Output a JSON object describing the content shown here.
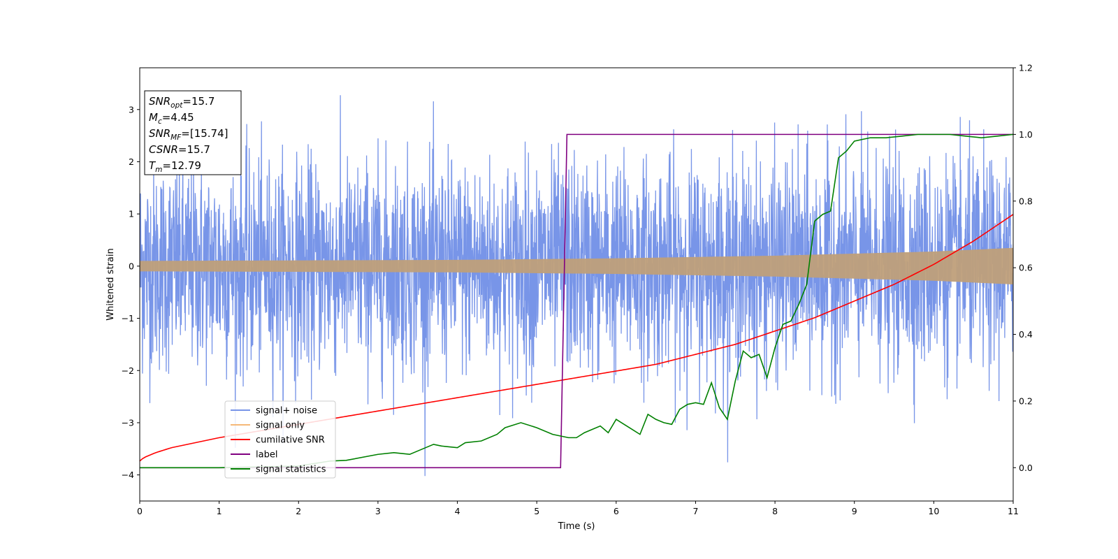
{
  "chart_data": {
    "type": "line",
    "xlabel": "Time (s)",
    "ylabel": "Whitened strain",
    "xlim": [
      0,
      11
    ],
    "ylim": [
      -4.5,
      3.8
    ],
    "y2lim": [
      -0.1,
      1.2
    ],
    "x_ticks": [
      "0",
      "1",
      "2",
      "3",
      "4",
      "5",
      "6",
      "7",
      "8",
      "9",
      "10",
      "11"
    ],
    "y_ticks": [
      "−4",
      "−3",
      "−2",
      "−1",
      "0",
      "1",
      "2",
      "3"
    ],
    "y2_ticks": [
      "0.0",
      "0.2",
      "0.4",
      "0.6",
      "0.8",
      "1.0",
      "1.2"
    ],
    "infobox": [
      {
        "base": "SNR",
        "sub": "opt",
        "value": "=15.7"
      },
      {
        "base": "M",
        "sub": "c",
        "value": "=4.45"
      },
      {
        "base": "SNR",
        "sub": "MF",
        "value": "=[15.74]"
      },
      {
        "base": "CSNR",
        "sub": "",
        "value": "=15.7"
      },
      {
        "base": "T",
        "sub": "m",
        "value": "=12.79"
      }
    ],
    "legend": {
      "placement": "lower-left",
      "entries": [
        {
          "label": "signal+ noise",
          "color": "#7895e8"
        },
        {
          "label": "signal only",
          "color": "#f5b878"
        },
        {
          "label": "cumilative SNR",
          "color": "#ff0000"
        },
        {
          "label": "label",
          "color": "#800080"
        },
        {
          "label": "signal statistics",
          "color": "#008000"
        }
      ]
    },
    "series": [
      {
        "name": "signal+ noise",
        "axis": "left",
        "color": "#7895e8",
        "kind": "noise",
        "noise_sigma": 1.0,
        "x_range": [
          0,
          11
        ]
      },
      {
        "name": "signal only",
        "axis": "left",
        "color": "#bf9f7a",
        "kind": "envelope",
        "envelope_x": [
          0,
          2,
          4,
          6,
          8,
          9,
          10,
          11
        ],
        "envelope_y": [
          0.1,
          0.11,
          0.12,
          0.15,
          0.2,
          0.24,
          0.28,
          0.35
        ]
      },
      {
        "name": "cumilative SNR",
        "axis": "right",
        "color": "#ff0000",
        "x": [
          0,
          0.05,
          0.1,
          0.2,
          0.4,
          0.6,
          1.0,
          1.5,
          2.0,
          2.5,
          3.0,
          3.5,
          4.0,
          4.5,
          5.0,
          5.5,
          6.0,
          6.5,
          7.0,
          7.5,
          8.0,
          8.5,
          9.0,
          9.5,
          10.0,
          10.5,
          11.0
        ],
        "y": [
          0.02,
          0.03,
          0.035,
          0.045,
          0.06,
          0.07,
          0.09,
          0.11,
          0.13,
          0.15,
          0.17,
          0.19,
          0.21,
          0.23,
          0.25,
          0.27,
          0.29,
          0.31,
          0.34,
          0.37,
          0.41,
          0.45,
          0.5,
          0.55,
          0.61,
          0.68,
          0.76
        ]
      },
      {
        "name": "label",
        "axis": "right",
        "color": "#800080",
        "x": [
          0,
          5.3,
          5.38,
          11
        ],
        "y": [
          0.0,
          0.0,
          1.0,
          1.0
        ]
      },
      {
        "name": "signal statistics",
        "axis": "right",
        "color": "#008000",
        "x": [
          0,
          1.0,
          2.0,
          2.4,
          2.6,
          3.0,
          3.2,
          3.4,
          3.6,
          3.7,
          3.8,
          4.0,
          4.1,
          4.3,
          4.5,
          4.6,
          4.8,
          5.0,
          5.2,
          5.4,
          5.5,
          5.6,
          5.8,
          5.9,
          6.0,
          6.1,
          6.2,
          6.3,
          6.4,
          6.5,
          6.6,
          6.7,
          6.8,
          6.9,
          7.0,
          7.1,
          7.2,
          7.3,
          7.4,
          7.5,
          7.6,
          7.7,
          7.8,
          7.9,
          8.0,
          8.1,
          8.2,
          8.3,
          8.4,
          8.5,
          8.6,
          8.7,
          8.8,
          8.9,
          9.0,
          9.2,
          9.4,
          9.6,
          9.8,
          10.0,
          10.2,
          10.4,
          10.6,
          10.8,
          11.0
        ],
        "y": [
          0.0,
          0.0,
          0.005,
          0.02,
          0.022,
          0.04,
          0.045,
          0.04,
          0.06,
          0.07,
          0.065,
          0.06,
          0.075,
          0.08,
          0.1,
          0.12,
          0.135,
          0.12,
          0.1,
          0.09,
          0.09,
          0.105,
          0.125,
          0.105,
          0.145,
          0.13,
          0.115,
          0.1,
          0.16,
          0.145,
          0.135,
          0.13,
          0.175,
          0.19,
          0.195,
          0.19,
          0.255,
          0.18,
          0.145,
          0.26,
          0.35,
          0.33,
          0.34,
          0.27,
          0.36,
          0.43,
          0.44,
          0.49,
          0.55,
          0.74,
          0.76,
          0.77,
          0.93,
          0.95,
          0.98,
          0.99,
          0.99,
          0.995,
          1.0,
          1.0,
          1.0,
          0.995,
          0.99,
          0.995,
          1.0
        ]
      }
    ]
  }
}
